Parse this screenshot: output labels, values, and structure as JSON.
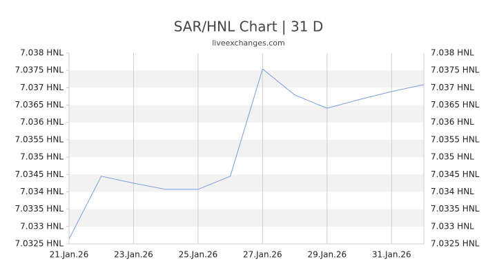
{
  "chart_data": {
    "type": "line",
    "title": "SAR/HNL Chart | 31 D",
    "subtitle": "liveexchanges.com",
    "categories": [
      "21.Jan.26",
      null,
      "23.Jan.26",
      null,
      "25.Jan.26",
      null,
      "27.Jan.26",
      null,
      "29.Jan.26",
      null,
      "31.Jan.26",
      null
    ],
    "series": [
      {
        "name": "SAR/HNL",
        "color": "#7b9be3",
        "values": [
          7.03264,
          7.03445,
          7.03425,
          7.03407,
          7.03407,
          7.03445,
          7.03754,
          7.03679,
          7.03641,
          7.03666,
          7.03689,
          7.03709
        ]
      }
    ],
    "ylim": [
      7.0325,
      7.038
    ],
    "yticks": [
      {
        "value": 7.0325,
        "label": "7.0325 HNL"
      },
      {
        "value": 7.033,
        "label": "7.033 HNL"
      },
      {
        "value": 7.0335,
        "label": "7.0335 HNL"
      },
      {
        "value": 7.034,
        "label": "7.034 HNL"
      },
      {
        "value": 7.0345,
        "label": "7.0345 HNL"
      },
      {
        "value": 7.035,
        "label": "7.035 HNL"
      },
      {
        "value": 7.0355,
        "label": "7.0355 HNL"
      },
      {
        "value": 7.036,
        "label": "7.036 HNL"
      },
      {
        "value": 7.0365,
        "label": "7.0365 HNL"
      },
      {
        "value": 7.037,
        "label": "7.037 HNL"
      },
      {
        "value": 7.0375,
        "label": "7.0375 HNL"
      },
      {
        "value": 7.038,
        "label": "7.038 HNL"
      }
    ],
    "grid": true
  }
}
